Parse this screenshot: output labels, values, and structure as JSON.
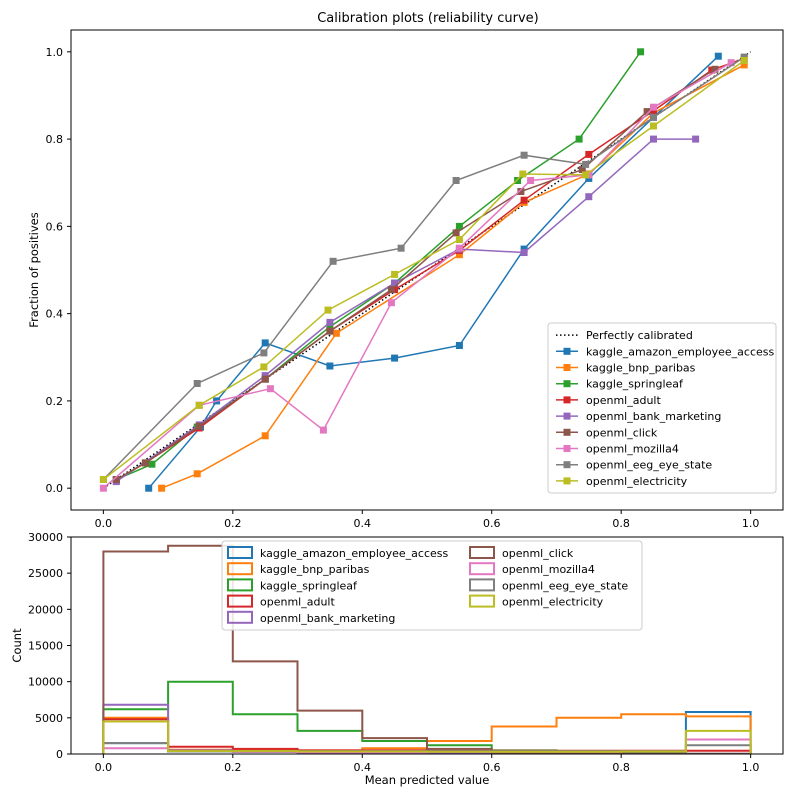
{
  "chart_data": [
    {
      "type": "line",
      "title": "Calibration plots  (reliability curve)",
      "xlabel": "",
      "ylabel": "Fraction of positives",
      "xlim": [
        -0.05,
        1.05
      ],
      "ylim": [
        -0.05,
        1.05
      ],
      "xticks": [
        "0.0",
        "0.2",
        "0.4",
        "0.6",
        "0.8",
        "1.0"
      ],
      "yticks": [
        "0.0",
        "0.2",
        "0.4",
        "0.6",
        "0.8",
        "1.0"
      ],
      "legend_position": "bottom-right",
      "reference": {
        "name": "Perfectly calibrated",
        "x": [
          0,
          1
        ],
        "y": [
          0,
          1
        ]
      },
      "series": [
        {
          "name": "kaggle_amazon_employee_access",
          "color": "#1f77b4",
          "x": [
            0.07,
            0.15,
            0.175,
            0.25,
            0.35,
            0.45,
            0.55,
            0.65,
            0.75,
            0.85,
            0.95
          ],
          "y": [
            0.0,
            0.14,
            0.2,
            0.333,
            0.28,
            0.298,
            0.327,
            0.548,
            0.71,
            0.85,
            0.99
          ]
        },
        {
          "name": "kaggle_bnp_paribas",
          "color": "#ff7f0e",
          "x": [
            0.09,
            0.145,
            0.25,
            0.36,
            0.55,
            0.65,
            0.75,
            0.85,
            0.99
          ],
          "y": [
            0.0,
            0.033,
            0.12,
            0.355,
            0.535,
            0.655,
            0.72,
            0.86,
            0.97
          ]
        },
        {
          "name": "kaggle_springleaf",
          "color": "#2ca02c",
          "x": [
            0.02,
            0.075,
            0.145,
            0.25,
            0.35,
            0.45,
            0.55,
            0.64,
            0.735,
            0.83
          ],
          "y": [
            0.02,
            0.055,
            0.14,
            0.25,
            0.37,
            0.47,
            0.6,
            0.705,
            0.8,
            1.0
          ]
        },
        {
          "name": "openml_adult",
          "color": "#d62728",
          "x": [
            0.02,
            0.065,
            0.148,
            0.25,
            0.35,
            0.45,
            0.55,
            0.65,
            0.75,
            0.85,
            0.94,
            0.99
          ],
          "y": [
            0.018,
            0.058,
            0.138,
            0.25,
            0.36,
            0.455,
            0.545,
            0.66,
            0.765,
            0.865,
            0.958,
            0.985
          ]
        },
        {
          "name": "openml_bank_marketing",
          "color": "#9467bd",
          "x": [
            0.02,
            0.148,
            0.25,
            0.35,
            0.45,
            0.55,
            0.65,
            0.75,
            0.85,
            0.915
          ],
          "y": [
            0.015,
            0.145,
            0.258,
            0.38,
            0.47,
            0.548,
            0.54,
            0.668,
            0.8,
            0.8
          ]
        },
        {
          "name": "openml_click",
          "color": "#8c564b",
          "x": [
            0.02,
            0.065,
            0.148,
            0.25,
            0.35,
            0.445,
            0.545,
            0.645,
            0.74,
            0.84,
            0.945
          ],
          "y": [
            0.02,
            0.058,
            0.142,
            0.25,
            0.36,
            0.455,
            0.585,
            0.68,
            0.73,
            0.863,
            0.96
          ]
        },
        {
          "name": "openml_mozilla4",
          "color": "#e377c2",
          "x": [
            0.0,
            0.148,
            0.258,
            0.34,
            0.445,
            0.55,
            0.66,
            0.75,
            0.85,
            0.97
          ],
          "y": [
            0.0,
            0.19,
            0.228,
            0.133,
            0.425,
            0.55,
            0.705,
            0.718,
            0.873,
            0.975
          ]
        },
        {
          "name": "openml_eeg_eye_state",
          "color": "#7f7f7f",
          "x": [
            0.0,
            0.145,
            0.248,
            0.355,
            0.46,
            0.545,
            0.65,
            0.745,
            0.85,
            0.99
          ],
          "y": [
            0.02,
            0.24,
            0.31,
            0.52,
            0.55,
            0.705,
            0.763,
            0.742,
            0.85,
            0.988
          ]
        },
        {
          "name": "openml_electricity",
          "color": "#bcbd22",
          "x": [
            0.0,
            0.148,
            0.248,
            0.347,
            0.45,
            0.55,
            0.648,
            0.745,
            0.85,
            0.99
          ],
          "y": [
            0.02,
            0.19,
            0.278,
            0.408,
            0.49,
            0.57,
            0.72,
            0.718,
            0.83,
            0.98
          ]
        }
      ]
    },
    {
      "type": "histogram",
      "title": "",
      "xlabel": "Mean predicted value",
      "ylabel": "Count",
      "xlim": [
        -0.05,
        1.05
      ],
      "ylim": [
        0,
        30000
      ],
      "xticks": [
        "0.0",
        "0.2",
        "0.4",
        "0.6",
        "0.8",
        "1.0"
      ],
      "yticks": [
        "0",
        "5000",
        "10000",
        "15000",
        "20000",
        "25000",
        "30000"
      ],
      "legend_position": "top-center",
      "bin_edges": [
        0.0,
        0.1,
        0.2,
        0.3,
        0.4,
        0.5,
        0.6,
        0.7,
        0.8,
        0.9,
        1.0
      ],
      "series": [
        {
          "name": "kaggle_amazon_employee_access",
          "color": "#1f77b4",
          "values": [
            1500,
            350,
            300,
            250,
            250,
            200,
            250,
            250,
            300,
            5800
          ]
        },
        {
          "name": "kaggle_bnp_paribas",
          "color": "#ff7f0e",
          "values": [
            5000,
            600,
            500,
            500,
            800,
            1800,
            3800,
            5000,
            5500,
            5200
          ]
        },
        {
          "name": "kaggle_springleaf",
          "color": "#2ca02c",
          "values": [
            6200,
            10000,
            5500,
            3200,
            1800,
            1200,
            500,
            200,
            80,
            20
          ]
        },
        {
          "name": "openml_adult",
          "color": "#d62728",
          "values": [
            4800,
            1000,
            700,
            500,
            500,
            450,
            450,
            450,
            450,
            450
          ]
        },
        {
          "name": "openml_bank_marketing",
          "color": "#9467bd",
          "values": [
            6800,
            500,
            300,
            200,
            150,
            100,
            80,
            60,
            40,
            30
          ]
        },
        {
          "name": "openml_click",
          "color": "#8c564b",
          "values": [
            28000,
            28800,
            12800,
            6000,
            2200,
            700,
            200,
            60,
            20,
            10
          ]
        },
        {
          "name": "openml_mozilla4",
          "color": "#e377c2",
          "values": [
            800,
            400,
            300,
            250,
            250,
            300,
            300,
            300,
            350,
            2000
          ]
        },
        {
          "name": "openml_eeg_eye_state",
          "color": "#7f7f7f",
          "values": [
            1500,
            400,
            400,
            400,
            400,
            400,
            400,
            400,
            400,
            1200
          ]
        },
        {
          "name": "openml_electricity",
          "color": "#bcbd22",
          "values": [
            4500,
            400,
            400,
            350,
            350,
            300,
            300,
            300,
            350,
            3200
          ]
        }
      ]
    }
  ]
}
